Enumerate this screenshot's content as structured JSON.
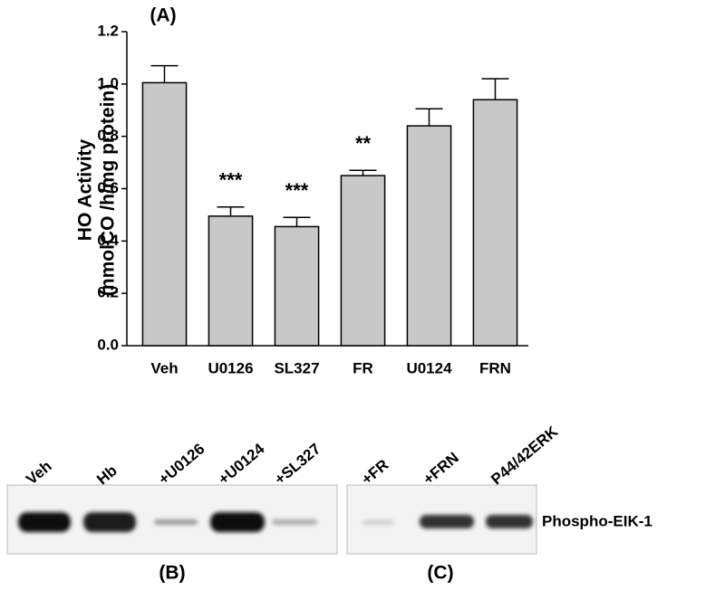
{
  "chart_data": {
    "type": "bar",
    "panel_label": "(A)",
    "ylabel": [
      "HO Activity",
      "(nmolCO /h/mg protein)"
    ],
    "categories": [
      "Veh",
      "U0126",
      "SL327",
      "FR",
      "U0124",
      "FRN"
    ],
    "values": [
      1.005,
      0.495,
      0.455,
      0.65,
      0.84,
      0.94
    ],
    "errors": [
      0.065,
      0.035,
      0.035,
      0.02,
      0.065,
      0.08
    ],
    "significance": [
      null,
      "***",
      "***",
      "**",
      null,
      null
    ],
    "color": "#c8c8c8",
    "ylim": [
      0,
      1.2
    ],
    "yticks": [
      {
        "value": 0,
        "label": "0.0"
      },
      0.2,
      0.4,
      0.6,
      0.8,
      {
        "value": 1,
        "label": "1.0"
      },
      1.2
    ]
  },
  "blots": {
    "b": {
      "panel_label": "(B)",
      "lanes": [
        "Veh",
        "Hb",
        "+U0126",
        "+U0124",
        "+SL327"
      ]
    },
    "c": {
      "panel_label": "(C)",
      "lanes": [
        "+FR",
        "+FRN",
        "P44/42ERK"
      ]
    },
    "protein_label": "Phospho-EIK-1"
  }
}
